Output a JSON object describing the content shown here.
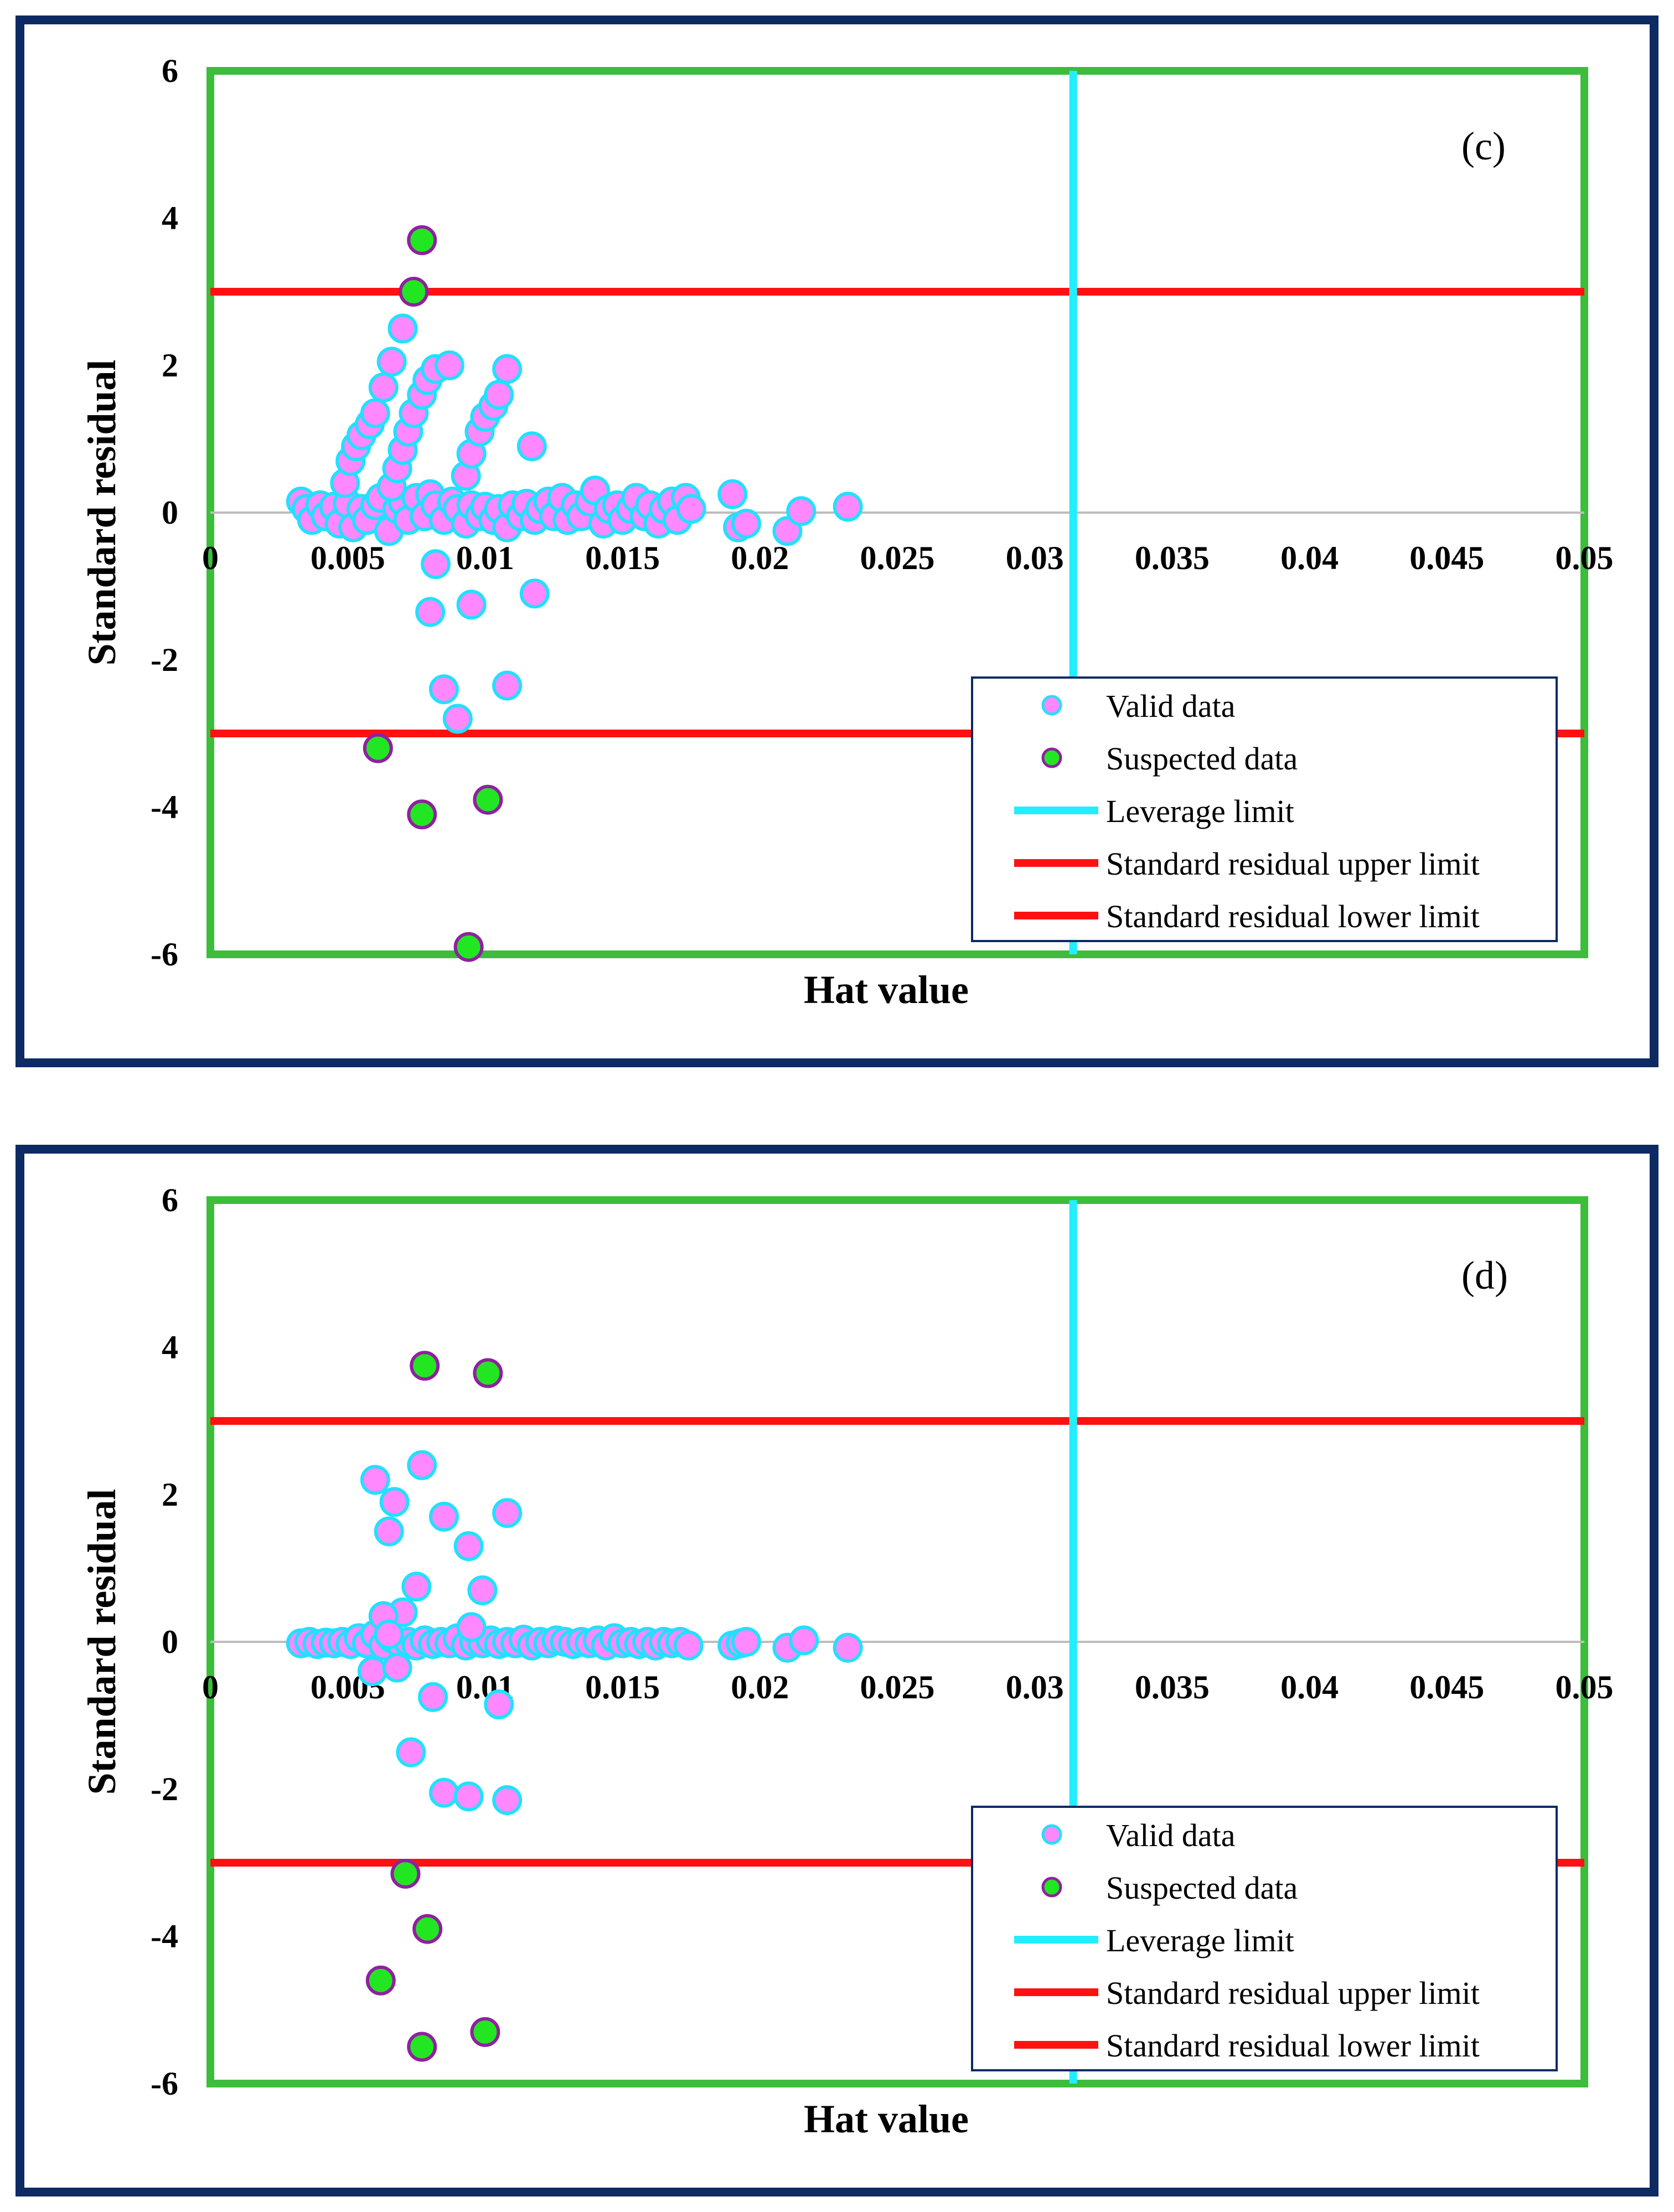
{
  "colors": {
    "panel_border": "#0d2a63",
    "plot_border": "#3cbd3c",
    "valid_fill": "#ff88ff",
    "valid_stroke": "#22e0ff",
    "suspected_fill": "#22e622",
    "suspected_stroke": "#9020a0",
    "leverage": "#22eeff",
    "residual_limit": "#ff1111",
    "zero_line": "#bdbdbd"
  },
  "chart_data": [
    {
      "type": "scatter",
      "panel_label": "(c)",
      "xlabel": "Hat value",
      "ylabel": "Standard residual",
      "xlim": [
        0,
        0.05
      ],
      "ylim": [
        -6,
        6
      ],
      "x_ticks": [
        "0",
        "0.005",
        "0.01",
        "0.015",
        "0.02",
        "0.025",
        "0.03",
        "0.035",
        "0.04",
        "0.045",
        "0.05"
      ],
      "y_ticks": [
        "6",
        "4",
        "2",
        "0",
        "-2",
        "-4",
        "-6"
      ],
      "leverage_limit": 0.0314,
      "residual_upper": 3,
      "residual_lower": -3,
      "legend": [
        "Valid data",
        "Suspected data",
        "Leverage limit",
        "Standard residual upper limit",
        "Standard residual lower limit"
      ],
      "series": [
        {
          "name": "Valid data",
          "points": [
            [
              0.0033,
              0.15
            ],
            [
              0.0035,
              0.05
            ],
            [
              0.0037,
              -0.1
            ],
            [
              0.004,
              0.1
            ],
            [
              0.0042,
              -0.05
            ],
            [
              0.0045,
              0.08
            ],
            [
              0.0047,
              -0.15
            ],
            [
              0.005,
              0.12
            ],
            [
              0.0052,
              -0.2
            ],
            [
              0.0055,
              0.05
            ],
            [
              0.0057,
              -0.1
            ],
            [
              0.006,
              0.1
            ],
            [
              0.0062,
              0.2
            ],
            [
              0.0065,
              -0.25
            ],
            [
              0.0068,
              0.05
            ],
            [
              0.007,
              0.15
            ],
            [
              0.0072,
              -0.1
            ],
            [
              0.0075,
              0.2
            ],
            [
              0.0078,
              -0.05
            ],
            [
              0.008,
              0.25
            ],
            [
              0.0082,
              0.1
            ],
            [
              0.0085,
              -0.1
            ],
            [
              0.0088,
              0.15
            ],
            [
              0.009,
              0.05
            ],
            [
              0.0093,
              -0.15
            ],
            [
              0.0095,
              0.1
            ],
            [
              0.0098,
              -0.05
            ],
            [
              0.01,
              0.08
            ],
            [
              0.0103,
              -0.1
            ],
            [
              0.0105,
              0.05
            ],
            [
              0.0108,
              -0.2
            ],
            [
              0.011,
              0.1
            ],
            [
              0.0113,
              -0.05
            ],
            [
              0.0115,
              0.12
            ],
            [
              0.0118,
              -0.1
            ],
            [
              0.012,
              0.05
            ],
            [
              0.0123,
              0.15
            ],
            [
              0.0125,
              -0.05
            ],
            [
              0.0128,
              0.2
            ],
            [
              0.013,
              -0.1
            ],
            [
              0.0133,
              0.1
            ],
            [
              0.0135,
              -0.05
            ],
            [
              0.0138,
              0.15
            ],
            [
              0.014,
              0.3
            ],
            [
              0.0143,
              -0.15
            ],
            [
              0.0145,
              0.05
            ],
            [
              0.0148,
              0.1
            ],
            [
              0.015,
              -0.1
            ],
            [
              0.0153,
              0.05
            ],
            [
              0.0155,
              0.2
            ],
            [
              0.0158,
              -0.05
            ],
            [
              0.016,
              0.1
            ],
            [
              0.0163,
              -0.15
            ],
            [
              0.0165,
              0.05
            ],
            [
              0.0168,
              0.15
            ],
            [
              0.017,
              -0.1
            ],
            [
              0.0173,
              0.2
            ],
            [
              0.0175,
              0.05
            ],
            [
              0.019,
              0.25
            ],
            [
              0.0192,
              -0.2
            ],
            [
              0.0195,
              -0.15
            ],
            [
              0.021,
              -0.25
            ],
            [
              0.0215,
              0.02
            ],
            [
              0.0232,
              0.08
            ],
            [
              0.0049,
              0.4
            ],
            [
              0.0051,
              0.7
            ],
            [
              0.0053,
              0.9
            ],
            [
              0.0055,
              1.05
            ],
            [
              0.0058,
              1.2
            ],
            [
              0.006,
              1.35
            ],
            [
              0.0063,
              1.7
            ],
            [
              0.0066,
              2.05
            ],
            [
              0.007,
              2.5
            ],
            [
              0.0066,
              0.35
            ],
            [
              0.0068,
              0.6
            ],
            [
              0.007,
              0.85
            ],
            [
              0.0072,
              1.1
            ],
            [
              0.0074,
              1.35
            ],
            [
              0.0077,
              1.6
            ],
            [
              0.0079,
              1.8
            ],
            [
              0.0082,
              1.95
            ],
            [
              0.0087,
              2.0
            ],
            [
              0.0093,
              0.5
            ],
            [
              0.0095,
              0.8
            ],
            [
              0.0098,
              1.1
            ],
            [
              0.01,
              1.3
            ],
            [
              0.0103,
              1.45
            ],
            [
              0.0105,
              1.6
            ],
            [
              0.0108,
              1.95
            ],
            [
              0.0117,
              0.9
            ],
            [
              0.0082,
              -0.7
            ],
            [
              0.008,
              -1.35
            ],
            [
              0.0095,
              -1.25
            ],
            [
              0.0118,
              -1.1
            ],
            [
              0.0085,
              -2.4
            ],
            [
              0.009,
              -2.8
            ],
            [
              0.0108,
              -2.35
            ]
          ]
        },
        {
          "name": "Suspected data",
          "points": [
            [
              0.0077,
              3.7
            ],
            [
              0.0074,
              3.0
            ],
            [
              0.0061,
              -3.2
            ],
            [
              0.0077,
              -4.1
            ],
            [
              0.0101,
              -3.9
            ],
            [
              0.0094,
              -5.9
            ]
          ]
        }
      ]
    },
    {
      "type": "scatter",
      "panel_label": "(d)",
      "xlabel": "Hat value",
      "ylabel": "Standard residual",
      "xlim": [
        0,
        0.05
      ],
      "ylim": [
        -6,
        6
      ],
      "x_ticks": [
        "0",
        "0.005",
        "0.01",
        "0.015",
        "0.02",
        "0.025",
        "0.03",
        "0.035",
        "0.04",
        "0.045",
        "0.05"
      ],
      "y_ticks": [
        "6",
        "4",
        "2",
        "0",
        "-2",
        "-4",
        "-6"
      ],
      "leverage_limit": 0.0314,
      "residual_upper": 3,
      "residual_lower": -3,
      "legend": [
        "Valid data",
        "Suspected data",
        "Leverage limit",
        "Standard residual upper limit",
        "Standard residual lower limit"
      ],
      "series": [
        {
          "name": "Valid data",
          "points": [
            [
              0.0033,
              -0.02
            ],
            [
              0.0036,
              0.0
            ],
            [
              0.0039,
              -0.03
            ],
            [
              0.0042,
              -0.01
            ],
            [
              0.0045,
              -0.02
            ],
            [
              0.0048,
              0.0
            ],
            [
              0.0051,
              -0.03
            ],
            [
              0.0054,
              0.05
            ],
            [
              0.0057,
              -0.02
            ],
            [
              0.006,
              0.1
            ],
            [
              0.0063,
              -0.05
            ],
            [
              0.0066,
              0.05
            ],
            [
              0.0069,
              -0.02
            ],
            [
              0.0072,
              0.0
            ],
            [
              0.0075,
              -0.05
            ],
            [
              0.0078,
              0.02
            ],
            [
              0.0081,
              -0.03
            ],
            [
              0.0084,
              0.0
            ],
            [
              0.0087,
              -0.02
            ],
            [
              0.009,
              0.05
            ],
            [
              0.0093,
              -0.05
            ],
            [
              0.0096,
              0.0
            ],
            [
              0.0099,
              -0.02
            ],
            [
              0.0102,
              0.02
            ],
            [
              0.0105,
              -0.03
            ],
            [
              0.0108,
              0.0
            ],
            [
              0.0111,
              -0.02
            ],
            [
              0.0114,
              0.03
            ],
            [
              0.0117,
              -0.05
            ],
            [
              0.012,
              0.0
            ],
            [
              0.0123,
              -0.02
            ],
            [
              0.0126,
              0.02
            ],
            [
              0.0129,
              0.0
            ],
            [
              0.0132,
              -0.03
            ],
            [
              0.0135,
              0.0
            ],
            [
              0.0138,
              -0.02
            ],
            [
              0.0141,
              0.02
            ],
            [
              0.0144,
              -0.05
            ],
            [
              0.0147,
              0.05
            ],
            [
              0.015,
              -0.02
            ],
            [
              0.0153,
              0.0
            ],
            [
              0.0156,
              -0.03
            ],
            [
              0.0159,
              0.0
            ],
            [
              0.0162,
              -0.05
            ],
            [
              0.0165,
              0.0
            ],
            [
              0.0168,
              -0.02
            ],
            [
              0.0171,
              0.0
            ],
            [
              0.0174,
              -0.05
            ],
            [
              0.019,
              -0.05
            ],
            [
              0.0193,
              -0.02
            ],
            [
              0.0195,
              0.0
            ],
            [
              0.021,
              -0.08
            ],
            [
              0.0216,
              0.02
            ],
            [
              0.0232,
              -0.08
            ],
            [
              0.006,
              2.2
            ],
            [
              0.0067,
              1.9
            ],
            [
              0.0065,
              1.5
            ],
            [
              0.0077,
              2.4
            ],
            [
              0.0085,
              1.7
            ],
            [
              0.0094,
              1.3
            ],
            [
              0.0108,
              1.75
            ],
            [
              0.0075,
              0.75
            ],
            [
              0.0099,
              0.7
            ],
            [
              0.007,
              0.4
            ],
            [
              0.0063,
              0.35
            ],
            [
              0.0065,
              0.1
            ],
            [
              0.0095,
              0.2
            ],
            [
              0.0081,
              -0.75
            ],
            [
              0.0105,
              -0.85
            ],
            [
              0.0073,
              -1.5
            ],
            [
              0.0085,
              -2.05
            ],
            [
              0.0094,
              -2.1
            ],
            [
              0.0108,
              -2.15
            ],
            [
              0.0059,
              -0.4
            ],
            [
              0.0068,
              -0.35
            ]
          ]
        },
        {
          "name": "Suspected data",
          "points": [
            [
              0.0078,
              3.75
            ],
            [
              0.0101,
              3.65
            ],
            [
              0.0071,
              -3.15
            ],
            [
              0.0079,
              -3.9
            ],
            [
              0.0062,
              -4.6
            ],
            [
              0.0077,
              -5.5
            ],
            [
              0.01,
              -5.3
            ]
          ]
        }
      ]
    }
  ]
}
